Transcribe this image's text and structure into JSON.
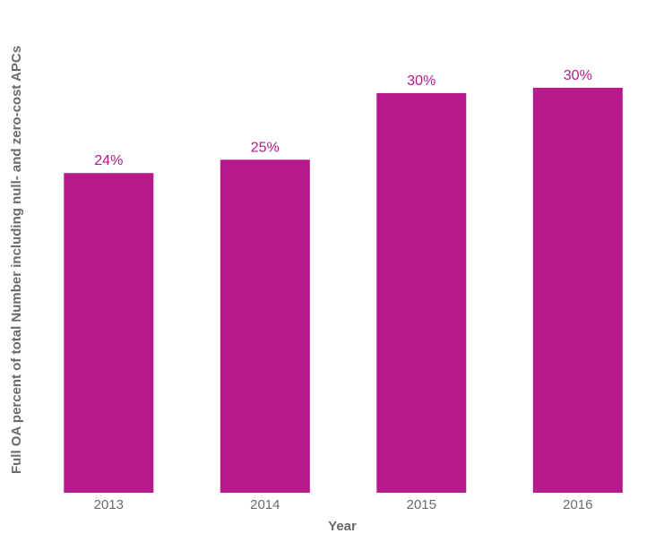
{
  "colors": {
    "bar": "#b5198a",
    "data_label": "#b5198a",
    "axis_text": "#6b6b6b"
  },
  "chart_data": {
    "type": "bar",
    "title": "",
    "xlabel": "Year",
    "ylabel": "Full OA percent of total Number including null- and zero-cost APCs",
    "categories": [
      "2013",
      "2014",
      "2015",
      "2016"
    ],
    "values": [
      24,
      25,
      30,
      30.4
    ],
    "data_labels": [
      "24%",
      "25%",
      "30%",
      "30%"
    ],
    "ylim": [
      0,
      30.4
    ],
    "grid": false,
    "legend": "none"
  }
}
